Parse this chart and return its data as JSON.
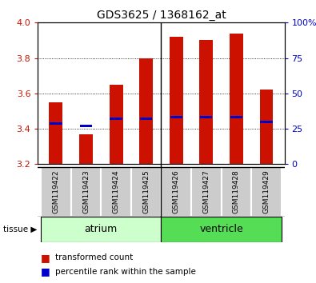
{
  "title": "GDS3625 / 1368162_at",
  "samples": [
    "GSM119422",
    "GSM119423",
    "GSM119424",
    "GSM119425",
    "GSM119426",
    "GSM119427",
    "GSM119428",
    "GSM119429"
  ],
  "transformed_counts": [
    3.55,
    3.37,
    3.65,
    3.8,
    3.92,
    3.9,
    3.94,
    3.62
  ],
  "percentile_values": [
    3.43,
    3.415,
    3.455,
    3.455,
    3.465,
    3.465,
    3.465,
    3.44
  ],
  "y_min": 3.2,
  "y_max": 4.0,
  "y_ticks": [
    3.2,
    3.4,
    3.6,
    3.8,
    4.0
  ],
  "right_y_ticks": [
    0,
    25,
    50,
    75,
    100
  ],
  "bar_color": "#cc1100",
  "marker_color": "#0000cc",
  "atrium_indices": [
    0,
    1,
    2,
    3
  ],
  "ventricle_indices": [
    4,
    5,
    6,
    7
  ],
  "atrium_color": "#ccffcc",
  "ventricle_color": "#55dd55",
  "bar_width": 0.45,
  "baseline": 3.2
}
